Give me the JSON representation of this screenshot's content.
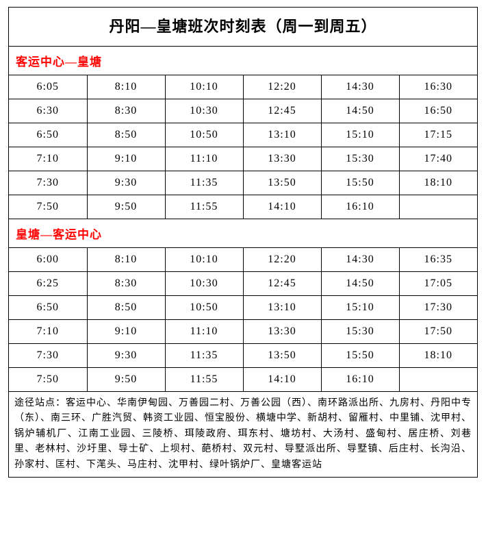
{
  "title": "丹阳—皇塘班次时刻表（周一到周五）",
  "section1": {
    "header": "客运中心—皇塘",
    "rows": [
      [
        "6:05",
        "8:10",
        "10:10",
        "12:20",
        "14:30",
        "16:30"
      ],
      [
        "6:30",
        "8:30",
        "10:30",
        "12:45",
        "14:50",
        "16:50"
      ],
      [
        "6:50",
        "8:50",
        "10:50",
        "13:10",
        "15:10",
        "17:15"
      ],
      [
        "7:10",
        "9:10",
        "11:10",
        "13:30",
        "15:30",
        "17:40"
      ],
      [
        "7:30",
        "9:30",
        "11:35",
        "13:50",
        "15:50",
        "18:10"
      ],
      [
        "7:50",
        "9:50",
        "11:55",
        "14:10",
        "16:10",
        ""
      ]
    ]
  },
  "section2": {
    "header": "皇塘—客运中心",
    "rows": [
      [
        "6:00",
        "8:10",
        "10:10",
        "12:20",
        "14:30",
        "16:35"
      ],
      [
        "6:25",
        "8:30",
        "10:30",
        "12:45",
        "14:50",
        "17:05"
      ],
      [
        "6:50",
        "8:50",
        "10:50",
        "13:10",
        "15:10",
        "17:30"
      ],
      [
        "7:10",
        "9:10",
        "11:10",
        "13:30",
        "15:30",
        "17:50"
      ],
      [
        "7:30",
        "9:30",
        "11:35",
        "13:50",
        "15:50",
        "18:10"
      ],
      [
        "7:50",
        "9:50",
        "11:55",
        "14:10",
        "16:10",
        ""
      ]
    ]
  },
  "footer": "途径站点：客运中心、华南伊甸园、万善园二村、万善公园（西）、南环路派出所、九房村、丹阳中专（东）、南三环、广胜汽贸、韩资工业园、恒宝股份、横塘中学、新胡村、留雁村、中里铺、沈甲村、锅炉辅机厂、江南工业园、三陵桥、珥陵政府、珥东村、塘坊村、大汤村、盛甸村、居庄桥、刘巷里、老林村、沙圩里、导士矿、上坝村、葩桥村、双元村、导墅派出所、导墅镇、后庄村、长沟沿、孙家村、匡村、下滗头、马庄村、沈甲村、绿叶锅炉厂、皇塘客运站",
  "colors": {
    "header_red": "#ff0000",
    "border": "#000000",
    "background": "#ffffff",
    "text": "#000000"
  },
  "table_config": {
    "columns": 6,
    "cell_fontsize": 16,
    "title_fontsize": 22,
    "section_fontsize": 17,
    "footer_fontsize": 14
  }
}
